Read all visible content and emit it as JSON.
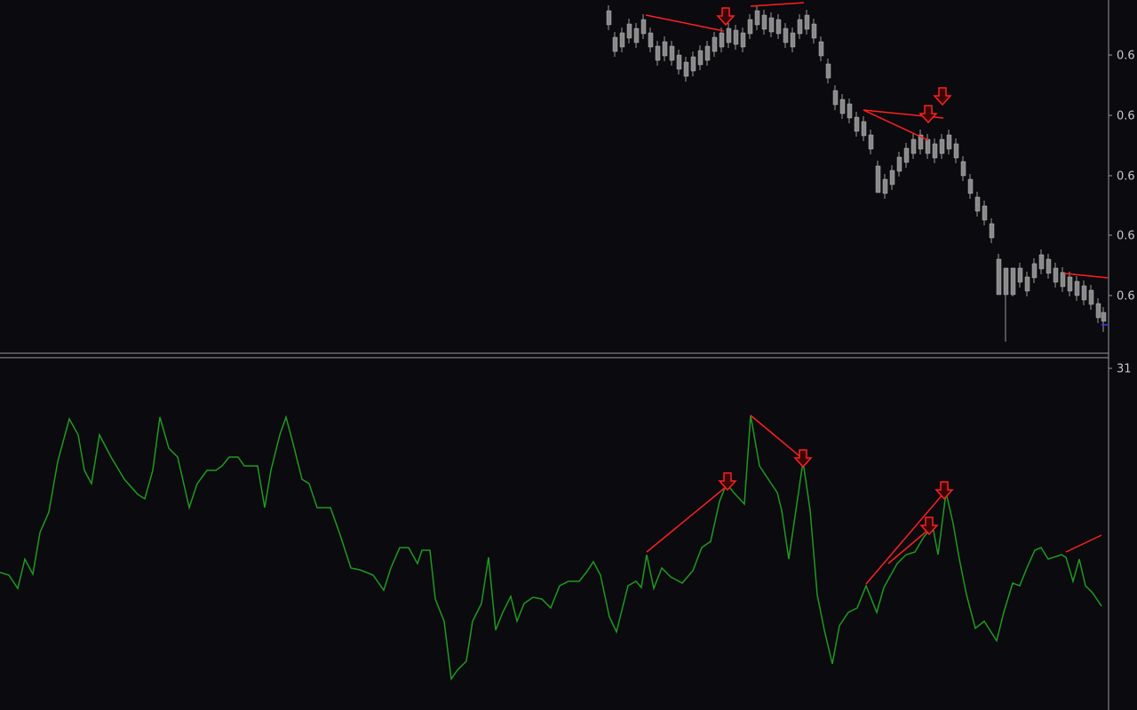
{
  "price_axis": {
    "labels": [
      "0.6",
      "0.6",
      "0.6",
      "0.6",
      "0.6"
    ]
  },
  "indicator_axis": {
    "labels": [
      "31"
    ]
  }
}
